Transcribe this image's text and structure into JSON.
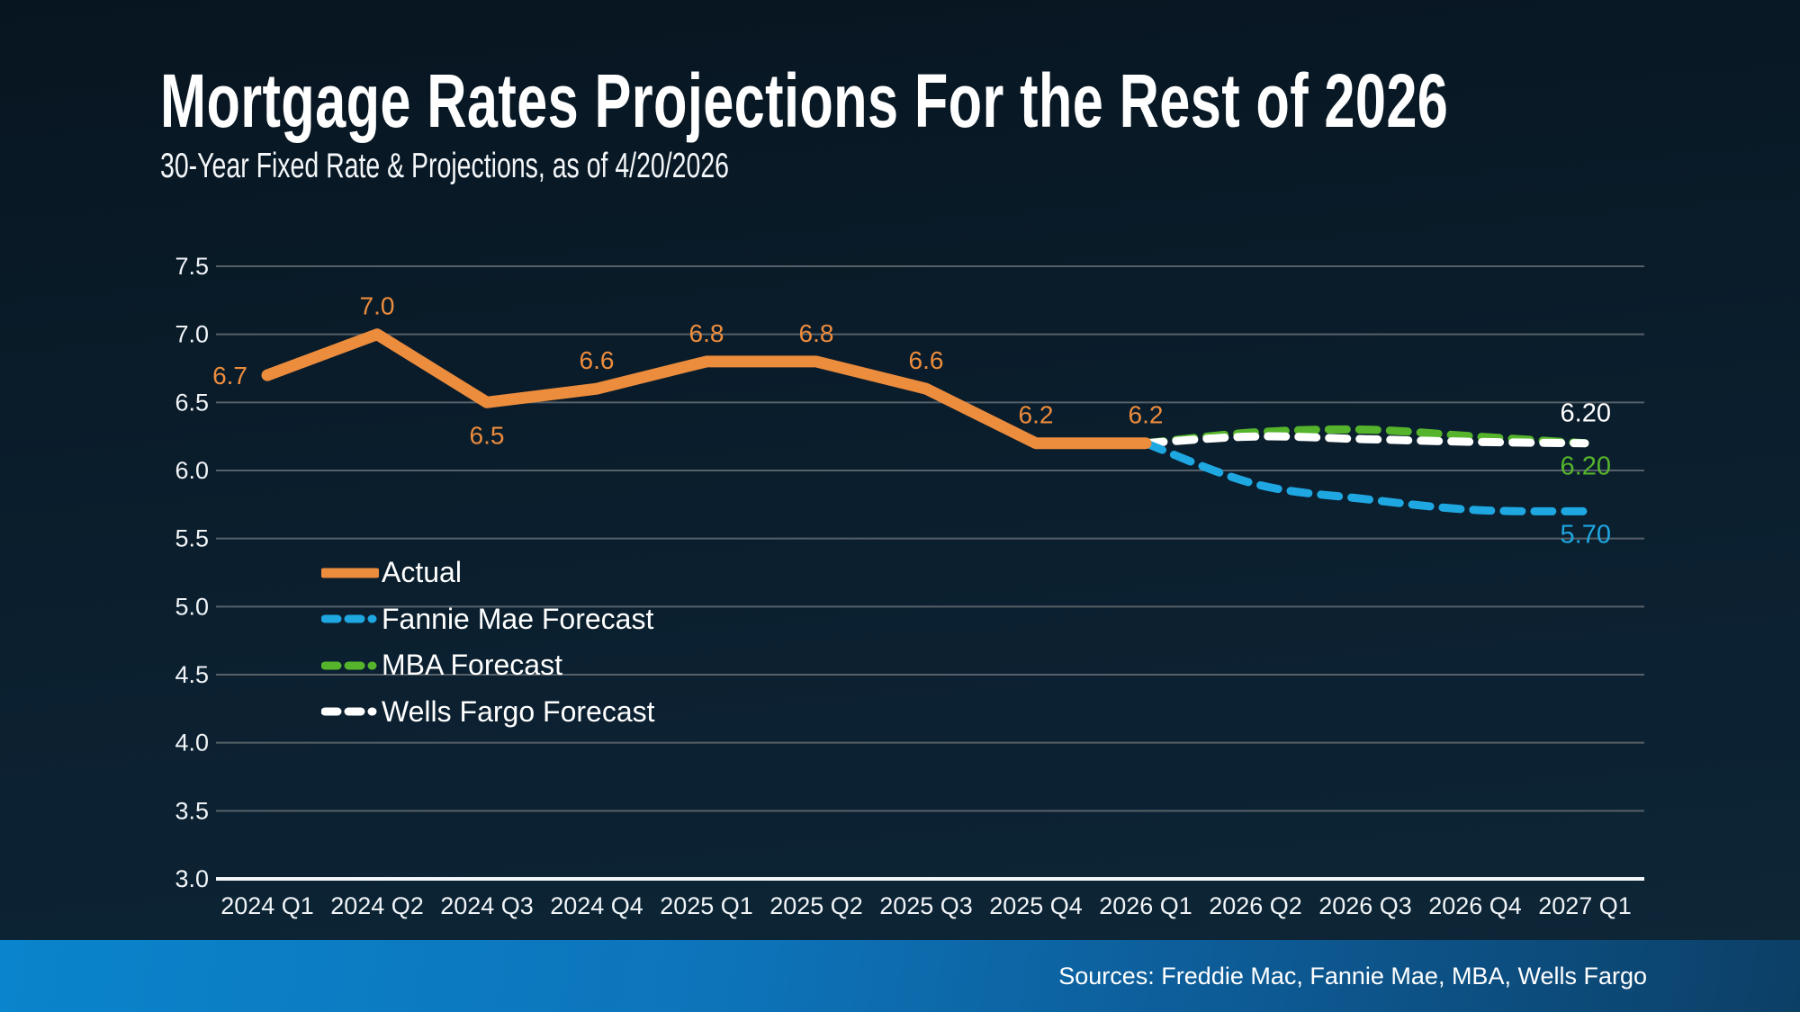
{
  "header": {
    "title": "Mortgage Rates Projections For the Rest of 2026",
    "subtitle": "30-Year Fixed Rate & Projections, as of 4/20/2026"
  },
  "footer": {
    "sources": "Sources: Freddie Mac, Fannie Mae, MBA, Wells Fargo"
  },
  "colors": {
    "actual": "#EC8C3D",
    "fannie_mae": "#1EA7E1",
    "mba": "#55B42C",
    "wells_fargo": "#FFFFFF",
    "gridline": "#566068",
    "axis_line": "#F3F6F8",
    "background_top": "#071520",
    "background_bottom": "#0E2737",
    "footer_left": "#0A84CC",
    "footer_right": "#0C3F66"
  },
  "chart_data": {
    "type": "line",
    "title": "Mortgage Rates Projections For the Rest of 2026",
    "subtitle": "30-Year Fixed Rate & Projections, as of 4/20/2026",
    "categories": [
      "2024 Q1",
      "2024 Q2",
      "2024 Q3",
      "2024 Q4",
      "2025 Q1",
      "2025 Q2",
      "2025 Q3",
      "2025 Q4",
      "2026 Q1",
      "2026 Q2",
      "2026 Q3",
      "2026 Q4",
      "2027 Q1"
    ],
    "y_axis": {
      "min": 3.0,
      "max": 7.5,
      "step": 0.5,
      "ticks": [
        "7.5",
        "7.0",
        "6.5",
        "6.0",
        "5.5",
        "5.0",
        "4.5",
        "4.0",
        "3.5",
        "3.0"
      ]
    },
    "grid": true,
    "legend_position": "inside-left",
    "series": [
      {
        "name": "Actual",
        "color": "#EC8C3D",
        "style": "solid",
        "start_index": 0,
        "values": [
          6.7,
          7.0,
          6.5,
          6.6,
          6.8,
          6.8,
          6.6,
          6.2,
          6.2
        ],
        "point_labels": [
          {
            "text": "6.7",
            "pos": "left"
          },
          {
            "text": "7.0",
            "pos": "above"
          },
          {
            "text": "6.5",
            "pos": "below"
          },
          {
            "text": "6.6",
            "pos": "above"
          },
          {
            "text": "6.8",
            "pos": "above"
          },
          {
            "text": "6.8",
            "pos": "above"
          },
          {
            "text": "6.6",
            "pos": "above"
          },
          {
            "text": "6.2",
            "pos": "above"
          },
          {
            "text": "6.2",
            "pos": "above"
          }
        ]
      },
      {
        "name": "MBA Forecast",
        "color": "#55B42C",
        "style": "dashed",
        "start_index": 8,
        "values": [
          6.2,
          6.28,
          6.3,
          6.25,
          6.2
        ],
        "end_label": "6.20",
        "end_label_pos": "below"
      },
      {
        "name": "Wells Fargo Forecast",
        "color": "#FFFFFF",
        "style": "dashed",
        "start_index": 8,
        "values": [
          6.2,
          6.25,
          6.23,
          6.21,
          6.2
        ],
        "end_label": "6.20",
        "end_label_pos": "above"
      },
      {
        "name": "Fannie Mae Forecast",
        "color": "#1EA7E1",
        "style": "dashed",
        "start_index": 8,
        "values": [
          6.2,
          5.9,
          5.79,
          5.71,
          5.7
        ],
        "end_label": "5.70",
        "end_label_pos": "below"
      }
    ],
    "legend_order": [
      "Actual",
      "Fannie Mae Forecast",
      "MBA Forecast",
      "Wells Fargo Forecast"
    ]
  }
}
